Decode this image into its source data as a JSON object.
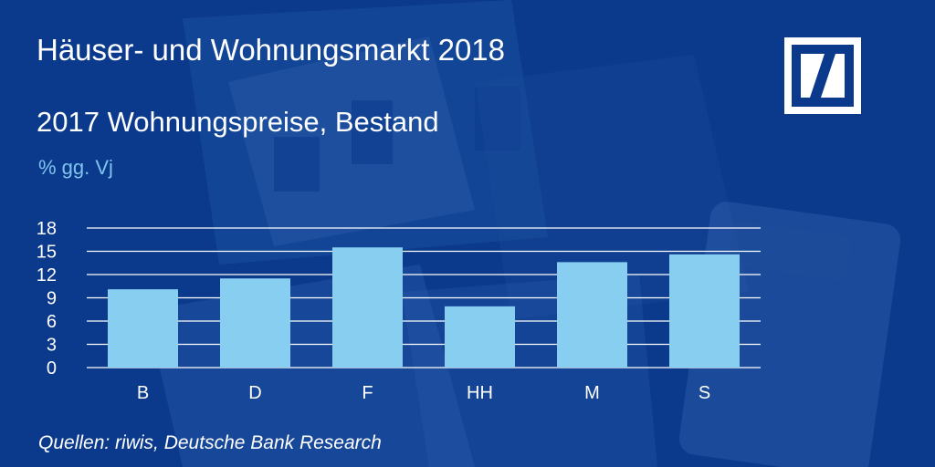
{
  "header": {
    "title": "Häuser- und Wohnungsmarkt 2018",
    "logo_name": "deutsche-bank-logo"
  },
  "chart_data": {
    "type": "bar",
    "title": "2017 Wohnungspreise, Bestand",
    "ylabel": "% gg. Vj",
    "xlabel": "",
    "categories": [
      "B",
      "D",
      "F",
      "HH",
      "M",
      "S"
    ],
    "values": [
      10.1,
      11.5,
      15.5,
      7.9,
      13.6,
      14.6
    ],
    "ylim": [
      0,
      18
    ],
    "yticks": [
      "0",
      "3",
      "6",
      "9",
      "12",
      "15",
      "18"
    ],
    "grid": true,
    "bar_color": "#87cef0",
    "grid_color": "#ffffff"
  },
  "footer": {
    "source": "Quellen: riwis, Deutsche Bank Research"
  },
  "colors": {
    "background": "#0b3a8c",
    "text": "#ffffff",
    "accent": "#7fc4ee"
  }
}
